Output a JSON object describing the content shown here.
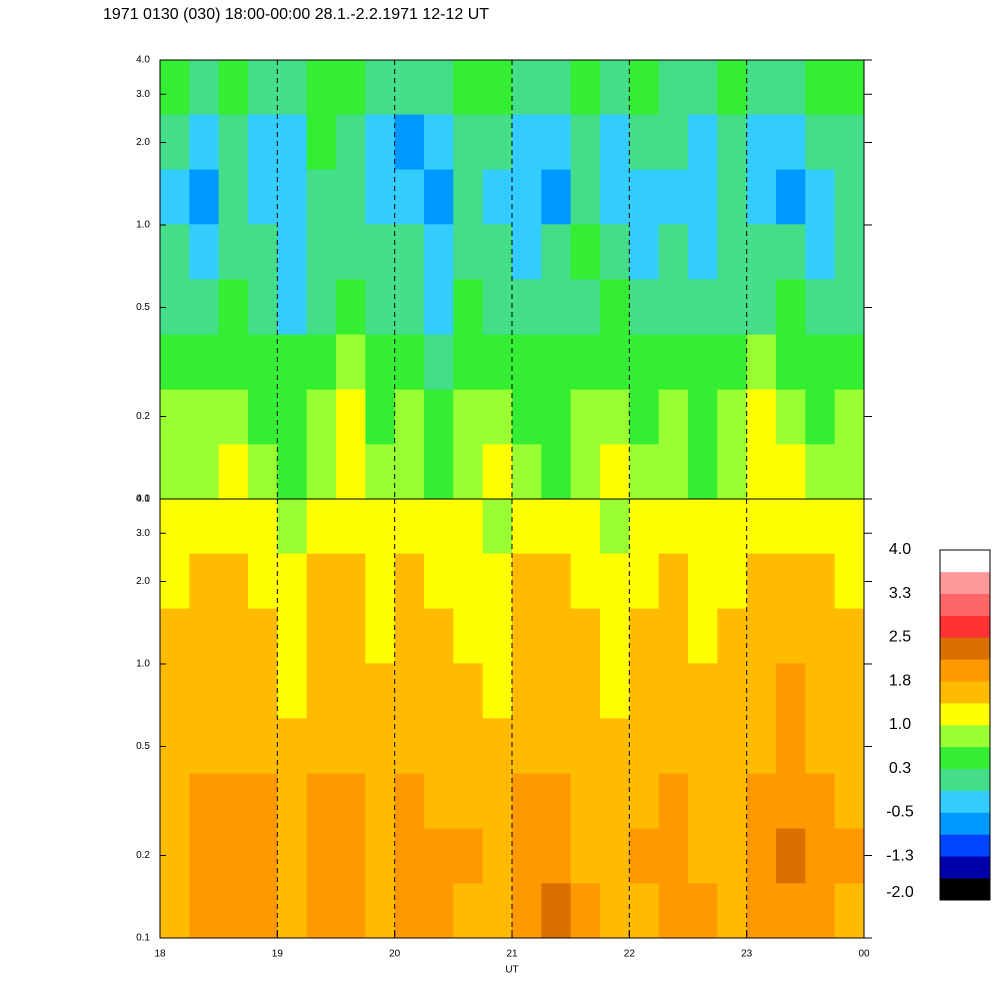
{
  "chart_data": [
    {
      "type": "heatmap",
      "title": "1971 0130 (030) 18:00-00:00 28.1.-2.2.1971  12-12 UT",
      "xlim": [
        18,
        24
      ],
      "ylim": [
        0.1,
        4.0
      ],
      "log_y": true,
      "vlines": [
        19,
        20,
        21,
        22,
        23
      ],
      "yticks": [
        0.1,
        0.2,
        0.5,
        {
          "value": 1,
          "label": "1.0"
        },
        {
          "value": 2,
          "label": "2.0"
        },
        {
          "value": 3,
          "label": "3.0"
        },
        {
          "value": 4,
          "label": "4.0"
        }
      ],
      "xbins": [
        18,
        18.25,
        18.5,
        18.75,
        19,
        19.25,
        19.5,
        19.75,
        20,
        20.25,
        20.5,
        20.75,
        21,
        21.25,
        21.5,
        21.75,
        22,
        22.25,
        22.5,
        22.75,
        23,
        23.25,
        23.5,
        23.75,
        24
      ],
      "ybins": [
        0.1,
        0.159,
        0.252,
        0.4,
        0.636,
        1.01,
        1.6,
        2.54,
        4.0
      ],
      "z": [
        [
          0.8,
          0.9,
          1.0,
          0.7,
          0.6,
          0.8,
          1.1,
          0.7,
          0.9,
          0.6,
          0.8,
          1.0,
          0.7,
          0.6,
          0.9,
          1.0,
          0.7,
          0.8,
          0.6,
          0.9,
          1.1,
          1.0,
          0.7,
          0.8
        ],
        [
          0.7,
          0.8,
          0.9,
          0.6,
          0.5,
          0.7,
          1.0,
          0.6,
          0.8,
          0.5,
          0.7,
          0.9,
          0.6,
          0.5,
          0.8,
          0.9,
          0.6,
          0.7,
          0.5,
          0.8,
          1.0,
          0.9,
          0.6,
          0.7
        ],
        [
          0.5,
          0.6,
          0.4,
          0.5,
          0.3,
          0.5,
          0.7,
          0.4,
          0.3,
          0.2,
          0.6,
          0.5,
          0.4,
          0.3,
          0.6,
          0.5,
          0.3,
          0.4,
          0.3,
          0.5,
          0.8,
          0.6,
          0.4,
          0.3
        ],
        [
          0.2,
          0.0,
          0.3,
          0.1,
          -0.2,
          0.2,
          0.3,
          0.0,
          0.1,
          -0.2,
          0.3,
          0.1,
          -0.1,
          0.0,
          0.2,
          0.3,
          0.1,
          0.0,
          -0.1,
          0.2,
          0.1,
          0.3,
          0.0,
          -0.1
        ],
        [
          0.1,
          -0.2,
          0.2,
          0.0,
          -0.3,
          0.1,
          0.2,
          -0.1,
          0.0,
          -0.4,
          0.1,
          0.2,
          -0.2,
          -0.1,
          0.3,
          0.0,
          -0.3,
          0.1,
          -0.2,
          0.2,
          -0.1,
          0.0,
          -0.3,
          0.1
        ],
        [
          -0.2,
          -0.6,
          0.0,
          -0.3,
          -0.4,
          0.2,
          -0.1,
          -0.5,
          -0.3,
          -0.7,
          0.0,
          -0.2,
          -0.3,
          -0.6,
          0.1,
          -0.4,
          -0.2,
          -0.3,
          -0.5,
          0.0,
          -0.4,
          -0.6,
          -0.2,
          0.0
        ],
        [
          0.0,
          -0.4,
          0.1,
          -0.2,
          -0.3,
          0.3,
          0.0,
          -0.4,
          -0.6,
          -0.3,
          0.1,
          -0.1,
          -0.4,
          -0.3,
          0.2,
          -0.5,
          -0.1,
          0.0,
          -0.3,
          0.1,
          -0.2,
          -0.5,
          -0.1,
          0.1
        ],
        [
          0.3,
          0.1,
          0.4,
          0.2,
          0.0,
          0.5,
          0.3,
          0.1,
          0.2,
          0.0,
          0.4,
          0.3,
          0.1,
          0.2,
          0.4,
          0.0,
          0.3,
          0.2,
          0.1,
          0.3,
          0.2,
          0.0,
          0.3,
          0.4
        ]
      ]
    },
    {
      "type": "heatmap",
      "xlabel": "UT",
      "xlim": [
        18,
        24
      ],
      "ylim": [
        0.1,
        4.0
      ],
      "log_y": true,
      "vlines": [
        19,
        20,
        21,
        22,
        23
      ],
      "xticks": [
        18,
        19,
        20,
        21,
        22,
        23,
        {
          "value": 24,
          "label": "00"
        }
      ],
      "yticks": [
        0.1,
        0.2,
        0.5,
        {
          "value": 1,
          "label": "1.0"
        },
        {
          "value": 2,
          "label": "2.0"
        },
        {
          "value": 3,
          "label": "3.0"
        },
        {
          "value": 4,
          "label": "4.0"
        }
      ],
      "xbins": [
        18,
        18.25,
        18.5,
        18.75,
        19,
        19.25,
        19.5,
        19.75,
        20,
        20.25,
        20.5,
        20.75,
        21,
        21.25,
        21.5,
        21.75,
        22,
        22.25,
        22.5,
        22.75,
        23,
        23.25,
        23.5,
        23.75,
        24
      ],
      "ybins": [
        0.1,
        0.159,
        0.252,
        0.4,
        0.636,
        1.01,
        1.6,
        2.54,
        4.0
      ],
      "z": [
        [
          1.6,
          1.9,
          2.0,
          1.8,
          1.7,
          2.1,
          1.9,
          1.6,
          1.8,
          2.0,
          1.7,
          1.5,
          1.9,
          2.2,
          1.8,
          1.6,
          1.7,
          1.9,
          1.8,
          1.6,
          2.0,
          2.1,
          1.9,
          1.7
        ],
        [
          1.7,
          2.0,
          2.1,
          1.9,
          1.6,
          2.0,
          2.0,
          1.7,
          1.9,
          1.9,
          1.8,
          1.6,
          2.0,
          2.1,
          1.7,
          1.7,
          1.8,
          2.0,
          1.7,
          1.7,
          1.9,
          2.2,
          2.0,
          1.8
        ],
        [
          1.6,
          1.8,
          1.9,
          1.8,
          1.6,
          1.8,
          1.9,
          1.6,
          1.8,
          1.7,
          1.7,
          1.5,
          1.8,
          1.9,
          1.6,
          1.6,
          1.7,
          1.8,
          1.6,
          1.6,
          1.8,
          2.0,
          1.8,
          1.7
        ],
        [
          1.5,
          1.6,
          1.7,
          1.5,
          1.4,
          1.6,
          1.7,
          1.4,
          1.6,
          1.5,
          1.5,
          1.4,
          1.6,
          1.7,
          1.5,
          1.4,
          1.5,
          1.6,
          1.5,
          1.5,
          1.6,
          1.9,
          1.7,
          1.5
        ],
        [
          1.4,
          1.5,
          1.6,
          1.4,
          1.3,
          1.5,
          1.6,
          1.4,
          1.5,
          1.4,
          1.4,
          1.3,
          1.5,
          1.6,
          1.4,
          1.3,
          1.4,
          1.5,
          1.4,
          1.4,
          1.5,
          1.8,
          1.6,
          1.4
        ],
        [
          1.4,
          1.5,
          1.5,
          1.4,
          1.3,
          1.4,
          1.5,
          1.3,
          1.5,
          1.4,
          1.3,
          1.3,
          1.5,
          1.6,
          1.4,
          1.3,
          1.4,
          1.5,
          1.3,
          1.4,
          1.5,
          1.7,
          1.5,
          1.4
        ],
        [
          1.3,
          1.4,
          1.4,
          1.3,
          1.2,
          1.4,
          1.5,
          1.3,
          1.4,
          1.3,
          1.3,
          1.2,
          1.4,
          1.5,
          1.3,
          1.2,
          1.3,
          1.4,
          1.3,
          1.3,
          1.4,
          1.5,
          1.4,
          1.3
        ],
        [
          1.0,
          1.1,
          1.2,
          1.0,
          0.9,
          1.1,
          1.2,
          1.0,
          1.1,
          1.0,
          1.0,
          0.9,
          1.1,
          1.2,
          1.0,
          0.9,
          1.0,
          1.1,
          1.0,
          1.0,
          1.1,
          1.2,
          1.1,
          1.0
        ]
      ]
    }
  ],
  "colorbar": {
    "lim": [
      -2.0,
      4.0
    ],
    "colors": [
      "#000000",
      "#0000aa",
      "#0044ff",
      "#0099ff",
      "#33ccff",
      "#44dd88",
      "#33ee33",
      "#99ff33",
      "#ffff00",
      "#ffbb00",
      "#ff9900",
      "#d97000",
      "#ff3333",
      "#ff6666",
      "#ff9999",
      "#ffffff"
    ],
    "ticks": [
      {
        "value": 4,
        "label": "4.0"
      },
      {
        "value": 3.25,
        "label": "3.3"
      },
      {
        "value": 2.5,
        "label": "2.5"
      },
      {
        "value": 1.75,
        "label": "1.8"
      },
      {
        "value": 1,
        "label": "1.0"
      },
      {
        "value": 0.25,
        "label": "0.3"
      },
      {
        "value": -0.5,
        "label": "-0.5"
      },
      {
        "value": -1.25,
        "label": "-1.3"
      },
      {
        "value": -2,
        "label": "-2.0"
      }
    ]
  }
}
